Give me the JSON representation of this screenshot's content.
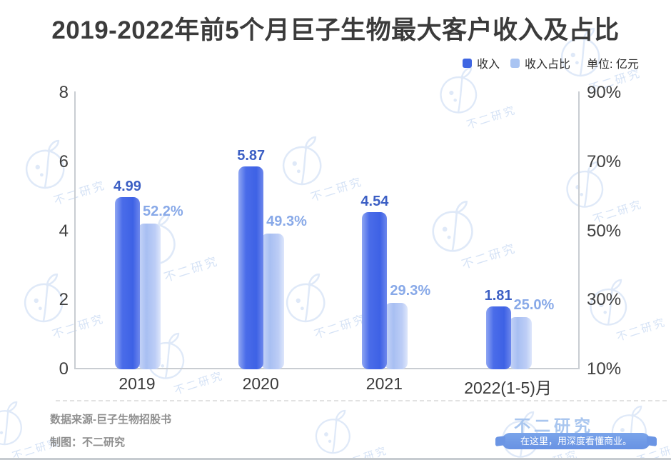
{
  "title": "2019-2022年前5个月巨子生物最大客户收入及占比",
  "legend": {
    "unit_label": "单位: 亿元"
  },
  "chart_data": {
    "type": "bar",
    "dual_axis": true,
    "categories": [
      "2019",
      "2020",
      "2021",
      "2022(1-5)月"
    ],
    "series": [
      {
        "name": "收入",
        "axis": "left",
        "unit": "亿元",
        "values": [
          4.99,
          5.87,
          4.54,
          1.81
        ],
        "labels": [
          "4.99",
          "5.87",
          "4.54",
          "1.81"
        ],
        "color": "#3f64e6"
      },
      {
        "name": "收入占比",
        "axis": "right",
        "values": [
          52.2,
          49.3,
          29.3,
          25.0
        ],
        "labels": [
          "52.2%",
          "49.3%",
          "29.3%",
          "25.0%"
        ],
        "color": "#b6c9f6"
      }
    ],
    "left_axis": {
      "min": 0,
      "max": 8,
      "ticks": [
        "8",
        "6",
        "4",
        "2",
        "0"
      ]
    },
    "right_axis": {
      "min": 10,
      "max": 90,
      "ticks": [
        "90%",
        "70%",
        "50%",
        "30%",
        "10%"
      ]
    },
    "legend_position": "top-right",
    "grid": false
  },
  "footer": {
    "source": "数据来源-巨子生物招股书",
    "credit": "制图：不二研究"
  },
  "brand": {
    "name": "不二研究",
    "tagline": "在这里，用深度看懂商业。"
  },
  "watermark": {
    "text": "不二研究"
  },
  "colors": {
    "income_bar": "#3f64e6",
    "share_bar": "#b6c9f6",
    "income_label": "#3c5fc4",
    "share_label": "#88a9e8",
    "title_text": "#3b3b3b",
    "axis_text": "#3f3f3f",
    "axis_line": "#c9cdd2",
    "footer_text": "#8f8f8f",
    "brand_blue": "#a9c6ef",
    "pill_blue": "#6d99e6",
    "watermark_stroke": "#dfe9f8",
    "watermark_text": "#d6e3f6"
  }
}
